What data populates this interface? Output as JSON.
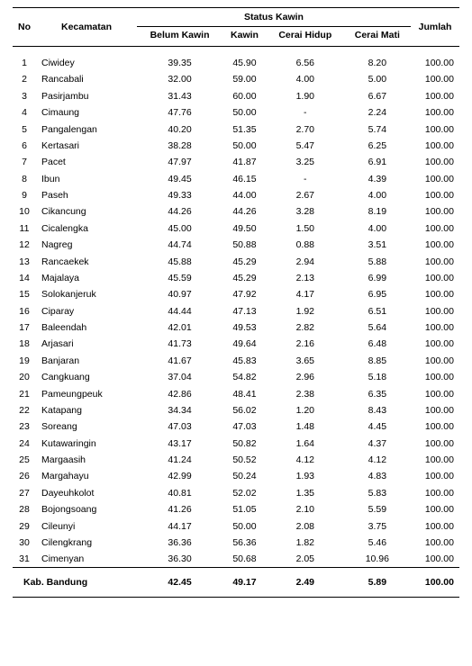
{
  "header": {
    "no": "No",
    "kecamatan": "Kecamatan",
    "status_group": "Status Kawin",
    "col_belum": "Belum Kawin",
    "col_kawin": "Kawin",
    "col_cerai_hidup": "Cerai Hidup",
    "col_cerai_mati": "Cerai Mati",
    "jumlah": "Jumlah"
  },
  "rows": [
    {
      "no": "1",
      "kec": "Ciwidey",
      "bk": "39.35",
      "k": "45.90",
      "ch": "6.56",
      "cm": "8.20",
      "j": "100.00"
    },
    {
      "no": "2",
      "kec": "Rancabali",
      "bk": "32.00",
      "k": "59.00",
      "ch": "4.00",
      "cm": "5.00",
      "j": "100.00"
    },
    {
      "no": "3",
      "kec": "Pasirjambu",
      "bk": "31.43",
      "k": "60.00",
      "ch": "1.90",
      "cm": "6.67",
      "j": "100.00"
    },
    {
      "no": "4",
      "kec": "Cimaung",
      "bk": "47.76",
      "k": "50.00",
      "ch": "-",
      "cm": "2.24",
      "j": "100.00"
    },
    {
      "no": "5",
      "kec": "Pangalengan",
      "bk": "40.20",
      "k": "51.35",
      "ch": "2.70",
      "cm": "5.74",
      "j": "100.00"
    },
    {
      "no": "6",
      "kec": "Kertasari",
      "bk": "38.28",
      "k": "50.00",
      "ch": "5.47",
      "cm": "6.25",
      "j": "100.00"
    },
    {
      "no": "7",
      "kec": "Pacet",
      "bk": "47.97",
      "k": "41.87",
      "ch": "3.25",
      "cm": "6.91",
      "j": "100.00"
    },
    {
      "no": "8",
      "kec": "Ibun",
      "bk": "49.45",
      "k": "46.15",
      "ch": "-",
      "cm": "4.39",
      "j": "100.00"
    },
    {
      "no": "9",
      "kec": "Paseh",
      "bk": "49.33",
      "k": "44.00",
      "ch": "2.67",
      "cm": "4.00",
      "j": "100.00"
    },
    {
      "no": "10",
      "kec": "Cikancung",
      "bk": "44.26",
      "k": "44.26",
      "ch": "3.28",
      "cm": "8.19",
      "j": "100.00"
    },
    {
      "no": "11",
      "kec": "Cicalengka",
      "bk": "45.00",
      "k": "49.50",
      "ch": "1.50",
      "cm": "4.00",
      "j": "100.00"
    },
    {
      "no": "12",
      "kec": "Nagreg",
      "bk": "44.74",
      "k": "50.88",
      "ch": "0.88",
      "cm": "3.51",
      "j": "100.00"
    },
    {
      "no": "13",
      "kec": "Rancaekek",
      "bk": "45.88",
      "k": "45.29",
      "ch": "2.94",
      "cm": "5.88",
      "j": "100.00"
    },
    {
      "no": "14",
      "kec": "Majalaya",
      "bk": "45.59",
      "k": "45.29",
      "ch": "2.13",
      "cm": "6.99",
      "j": "100.00"
    },
    {
      "no": "15",
      "kec": "Solokanjeruk",
      "bk": "40.97",
      "k": "47.92",
      "ch": "4.17",
      "cm": "6.95",
      "j": "100.00"
    },
    {
      "no": "16",
      "kec": "Ciparay",
      "bk": "44.44",
      "k": "47.13",
      "ch": "1.92",
      "cm": "6.51",
      "j": "100.00"
    },
    {
      "no": "17",
      "kec": "Baleendah",
      "bk": "42.01",
      "k": "49.53",
      "ch": "2.82",
      "cm": "5.64",
      "j": "100.00"
    },
    {
      "no": "18",
      "kec": "Arjasari",
      "bk": "41.73",
      "k": "49.64",
      "ch": "2.16",
      "cm": "6.48",
      "j": "100.00"
    },
    {
      "no": "19",
      "kec": "Banjaran",
      "bk": "41.67",
      "k": "45.83",
      "ch": "3.65",
      "cm": "8.85",
      "j": "100.00"
    },
    {
      "no": "20",
      "kec": "Cangkuang",
      "bk": "37.04",
      "k": "54.82",
      "ch": "2.96",
      "cm": "5.18",
      "j": "100.00"
    },
    {
      "no": "21",
      "kec": "Pameungpeuk",
      "bk": "42.86",
      "k": "48.41",
      "ch": "2.38",
      "cm": "6.35",
      "j": "100.00"
    },
    {
      "no": "22",
      "kec": "Katapang",
      "bk": "34.34",
      "k": "56.02",
      "ch": "1.20",
      "cm": "8.43",
      "j": "100.00"
    },
    {
      "no": "23",
      "kec": "Soreang",
      "bk": "47.03",
      "k": "47.03",
      "ch": "1.48",
      "cm": "4.45",
      "j": "100.00"
    },
    {
      "no": "24",
      "kec": "Kutawaringin",
      "bk": "43.17",
      "k": "50.82",
      "ch": "1.64",
      "cm": "4.37",
      "j": "100.00"
    },
    {
      "no": "25",
      "kec": "Margaasih",
      "bk": "41.24",
      "k": "50.52",
      "ch": "4.12",
      "cm": "4.12",
      "j": "100.00"
    },
    {
      "no": "26",
      "kec": "Margahayu",
      "bk": "42.99",
      "k": "50.24",
      "ch": "1.93",
      "cm": "4.83",
      "j": "100.00"
    },
    {
      "no": "27",
      "kec": "Dayeuhkolot",
      "bk": "40.81",
      "k": "52.02",
      "ch": "1.35",
      "cm": "5.83",
      "j": "100.00"
    },
    {
      "no": "28",
      "kec": "Bojongsoang",
      "bk": "41.26",
      "k": "51.05",
      "ch": "2.10",
      "cm": "5.59",
      "j": "100.00"
    },
    {
      "no": "29",
      "kec": "Cileunyi",
      "bk": "44.17",
      "k": "50.00",
      "ch": "2.08",
      "cm": "3.75",
      "j": "100.00"
    },
    {
      "no": "30",
      "kec": "Cilengkrang",
      "bk": "36.36",
      "k": "56.36",
      "ch": "1.82",
      "cm": "5.46",
      "j": "100.00"
    },
    {
      "no": "31",
      "kec": "Cimenyan",
      "bk": "36.30",
      "k": "50.68",
      "ch": "2.05",
      "cm": "10.96",
      "j": "100.00"
    }
  ],
  "footer": {
    "label": "Kab. Bandung",
    "bk": "42.45",
    "k": "49.17",
    "ch": "2.49",
    "cm": "5.89",
    "j": "100.00"
  }
}
